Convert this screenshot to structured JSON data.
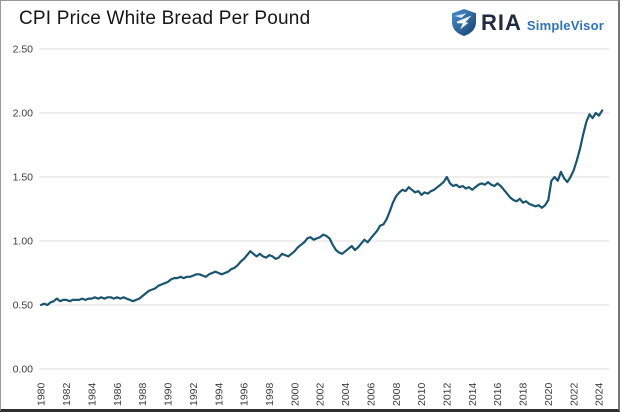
{
  "header": {
    "title": "CPI Price White Bread Per Pound",
    "logo": {
      "icon": "ria-shield-icon",
      "brand": "RIA",
      "product": "SimpleVisor",
      "brand_color": "#1f2b40",
      "product_color": "#2e74b8",
      "shield_color_top": "#4a8fd0",
      "shield_color_bottom": "#17406f"
    }
  },
  "chart_data": {
    "type": "line",
    "title": "CPI Price White Bread Per Pound",
    "xlabel": "",
    "ylabel": "",
    "xlim": [
      1979.84,
      2024.79
    ],
    "ylim": [
      0,
      2.5
    ],
    "grid": "horizontal",
    "gridline_color": "#dcdcdc",
    "tick_label_color": "#3d3d3d",
    "x_tick_rotation": -90,
    "x_ticks": [
      "1980",
      "1982",
      "1984",
      "1986",
      "1988",
      "1990",
      "1992",
      "1994",
      "1996",
      "1998",
      "2000",
      "2002",
      "2004",
      "2006",
      "2008",
      "2010",
      "2012",
      "2014",
      "2016",
      "2018",
      "2020",
      "2022",
      "2024"
    ],
    "x_tick_values": [
      1980,
      1982,
      1984,
      1986,
      1988,
      1990,
      1992,
      1994,
      1996,
      1998,
      2000,
      2002,
      2004,
      2006,
      2008,
      2010,
      2012,
      2014,
      2016,
      2018,
      2020,
      2022,
      2024
    ],
    "y_ticks": [
      "0.00",
      "0.50",
      "1.00",
      "1.50",
      "2.00",
      "2.50"
    ],
    "y_tick_values": [
      0,
      0.5,
      1.0,
      1.5,
      2.0,
      2.5
    ],
    "series": [
      {
        "name": "CPI Price White Bread Per Pound",
        "color": "#1a5570",
        "x": [
          1980,
          1980.25,
          1980.5,
          1980.75,
          1981,
          1981.25,
          1981.5,
          1981.75,
          1982,
          1982.25,
          1982.5,
          1982.75,
          1983,
          1983.25,
          1983.5,
          1983.75,
          1984,
          1984.25,
          1984.5,
          1984.75,
          1985,
          1985.25,
          1985.5,
          1985.75,
          1986,
          1986.25,
          1986.5,
          1986.75,
          1987,
          1987.25,
          1987.5,
          1987.75,
          1988,
          1988.25,
          1988.5,
          1988.75,
          1989,
          1989.25,
          1989.5,
          1989.75,
          1990,
          1990.25,
          1990.5,
          1990.75,
          1991,
          1991.25,
          1991.5,
          1991.75,
          1992,
          1992.25,
          1992.5,
          1992.75,
          1993,
          1993.25,
          1993.5,
          1993.75,
          1994,
          1994.25,
          1994.5,
          1994.75,
          1995,
          1995.25,
          1995.5,
          1995.75,
          1996,
          1996.25,
          1996.5,
          1996.75,
          1997,
          1997.25,
          1997.5,
          1997.75,
          1998,
          1998.25,
          1998.5,
          1998.75,
          1999,
          1999.25,
          1999.5,
          1999.75,
          2000,
          2000.25,
          2000.5,
          2000.75,
          2001,
          2001.25,
          2001.5,
          2001.75,
          2002,
          2002.25,
          2002.5,
          2002.75,
          2003,
          2003.25,
          2003.5,
          2003.75,
          2004,
          2004.25,
          2004.5,
          2004.75,
          2005,
          2005.25,
          2005.5,
          2005.75,
          2006,
          2006.25,
          2006.5,
          2006.75,
          2007,
          2007.25,
          2007.5,
          2007.75,
          2008,
          2008.25,
          2008.5,
          2008.75,
          2009,
          2009.25,
          2009.5,
          2009.75,
          2010,
          2010.25,
          2010.5,
          2010.75,
          2011,
          2011.25,
          2011.5,
          2011.75,
          2012,
          2012.25,
          2012.5,
          2012.75,
          2013,
          2013.25,
          2013.5,
          2013.75,
          2014,
          2014.25,
          2014.5,
          2014.75,
          2015,
          2015.25,
          2015.5,
          2015.75,
          2016,
          2016.25,
          2016.5,
          2016.75,
          2017,
          2017.25,
          2017.5,
          2017.75,
          2018,
          2018.25,
          2018.5,
          2018.75,
          2019,
          2019.25,
          2019.5,
          2019.75,
          2020,
          2020.25,
          2020.5,
          2020.75,
          2021,
          2021.25,
          2021.5,
          2021.75,
          2022,
          2022.25,
          2022.5,
          2022.75,
          2023,
          2023.25,
          2023.5,
          2023.75,
          2024,
          2024.25
        ],
        "values": [
          0.5,
          0.51,
          0.5,
          0.52,
          0.53,
          0.55,
          0.53,
          0.54,
          0.54,
          0.53,
          0.54,
          0.54,
          0.54,
          0.55,
          0.54,
          0.55,
          0.55,
          0.56,
          0.55,
          0.56,
          0.55,
          0.56,
          0.56,
          0.55,
          0.56,
          0.55,
          0.56,
          0.55,
          0.54,
          0.53,
          0.54,
          0.55,
          0.57,
          0.59,
          0.61,
          0.62,
          0.63,
          0.65,
          0.66,
          0.67,
          0.68,
          0.7,
          0.71,
          0.71,
          0.72,
          0.71,
          0.72,
          0.72,
          0.73,
          0.74,
          0.74,
          0.73,
          0.72,
          0.74,
          0.75,
          0.76,
          0.75,
          0.74,
          0.75,
          0.76,
          0.78,
          0.79,
          0.81,
          0.84,
          0.86,
          0.89,
          0.92,
          0.9,
          0.88,
          0.9,
          0.88,
          0.87,
          0.89,
          0.88,
          0.86,
          0.87,
          0.9,
          0.89,
          0.88,
          0.9,
          0.92,
          0.95,
          0.97,
          0.99,
          1.02,
          1.03,
          1.01,
          1.02,
          1.03,
          1.05,
          1.04,
          1.02,
          0.97,
          0.93,
          0.91,
          0.9,
          0.92,
          0.94,
          0.96,
          0.93,
          0.95,
          0.98,
          1.01,
          0.99,
          1.02,
          1.05,
          1.08,
          1.12,
          1.13,
          1.17,
          1.23,
          1.3,
          1.35,
          1.38,
          1.4,
          1.39,
          1.42,
          1.4,
          1.38,
          1.39,
          1.36,
          1.38,
          1.37,
          1.39,
          1.4,
          1.42,
          1.44,
          1.46,
          1.5,
          1.45,
          1.43,
          1.44,
          1.42,
          1.43,
          1.41,
          1.42,
          1.4,
          1.42,
          1.44,
          1.45,
          1.44,
          1.46,
          1.44,
          1.43,
          1.45,
          1.43,
          1.4,
          1.37,
          1.34,
          1.32,
          1.31,
          1.33,
          1.3,
          1.31,
          1.29,
          1.28,
          1.27,
          1.28,
          1.26,
          1.28,
          1.32,
          1.47,
          1.5,
          1.47,
          1.54,
          1.49,
          1.46,
          1.5,
          1.55,
          1.63,
          1.72,
          1.83,
          1.93,
          1.99,
          1.96,
          2.0,
          1.98,
          2.02
        ]
      }
    ],
    "legend": "none"
  }
}
